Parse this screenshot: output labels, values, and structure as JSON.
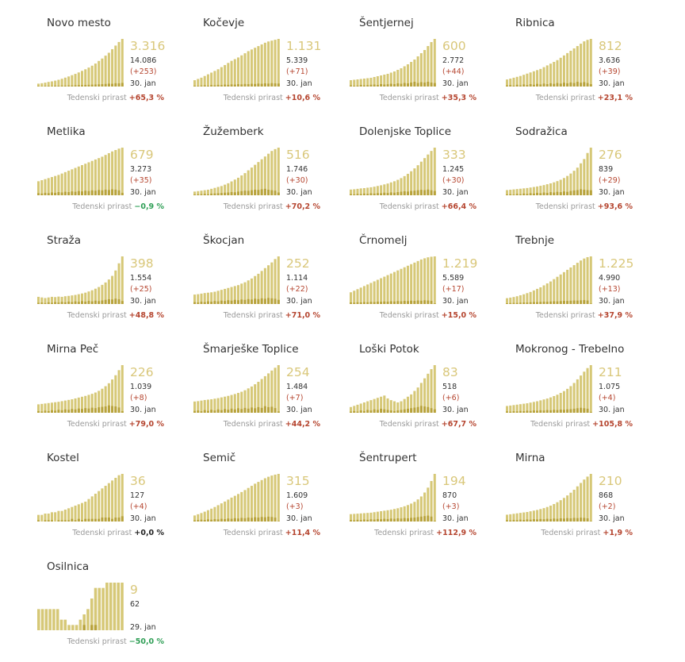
{
  "growth_label": "Tedenski prirast",
  "colors": {
    "bar_light": "#d6c877",
    "bar_dark": "#b8a33c",
    "big_number": "#d9c77a",
    "positive": "#b5452f",
    "negative": "#2e9e55"
  },
  "chart_data": [
    {
      "type": "bar",
      "name": "Novo mesto",
      "active": "3.316",
      "total": "14.086",
      "delta": "(+253)",
      "date": "30. jan",
      "growth": "+65,3 %",
      "sign": "pos",
      "values": [
        200,
        230,
        270,
        320,
        360,
        410,
        470,
        540,
        620,
        700,
        790,
        880,
        980,
        1090,
        1200,
        1320,
        1450,
        1600,
        1780,
        1950,
        2150,
        2350,
        2600,
        2850,
        3100,
        3316
      ],
      "new_cases": [
        40,
        30,
        45,
        50,
        35,
        60,
        55,
        70,
        65,
        80,
        75,
        90,
        100,
        95,
        110,
        120,
        130,
        140,
        150,
        160,
        180,
        200,
        190,
        230,
        220,
        253
      ]
    },
    {
      "type": "bar",
      "name": "Kočevje",
      "active": "1.131",
      "total": "5.339",
      "delta": "(+71)",
      "date": "30. jan",
      "growth": "+10,6 %",
      "sign": "pos",
      "values": [
        150,
        180,
        210,
        250,
        290,
        330,
        370,
        410,
        460,
        510,
        560,
        610,
        650,
        690,
        740,
        790,
        840,
        880,
        920,
        960,
        1000,
        1040,
        1070,
        1090,
        1110,
        1131
      ],
      "new_cases": [
        20,
        15,
        25,
        30,
        20,
        35,
        30,
        40,
        35,
        45,
        40,
        50,
        45,
        55,
        50,
        60,
        55,
        65,
        60,
        70,
        65,
        75,
        70,
        80,
        75,
        71
      ]
    },
    {
      "type": "bar",
      "name": "Šentjernej",
      "active": "600",
      "total": "2.772",
      "delta": "(+44)",
      "date": "30. jan",
      "growth": "+35,3 %",
      "sign": "pos",
      "values": [
        80,
        85,
        90,
        95,
        100,
        105,
        110,
        120,
        130,
        140,
        150,
        160,
        175,
        190,
        210,
        230,
        255,
        280,
        310,
        340,
        380,
        420,
        460,
        510,
        560,
        600
      ],
      "new_cases": [
        15,
        10,
        12,
        20,
        15,
        18,
        22,
        25,
        20,
        30,
        25,
        28,
        35,
        30,
        40,
        35,
        45,
        40,
        50,
        60,
        45,
        55,
        50,
        60,
        50,
        44
      ]
    },
    {
      "type": "bar",
      "name": "Ribnica",
      "active": "812",
      "total": "3.636",
      "delta": "(+39)",
      "date": "30. jan",
      "growth": "+23,1 %",
      "sign": "pos",
      "values": [
        120,
        135,
        150,
        165,
        180,
        200,
        220,
        240,
        260,
        280,
        300,
        330,
        360,
        390,
        420,
        450,
        490,
        530,
        570,
        610,
        650,
        690,
        730,
        770,
        795,
        812
      ],
      "new_cases": [
        20,
        25,
        15,
        30,
        20,
        35,
        25,
        40,
        30,
        45,
        35,
        50,
        40,
        55,
        45,
        60,
        50,
        65,
        55,
        70,
        60,
        80,
        65,
        75,
        60,
        39
      ]
    },
    {
      "type": "bar",
      "name": "Metlika",
      "active": "679",
      "total": "3.273",
      "delta": "(+35)",
      "date": "30. jan",
      "growth": "−0,9 %",
      "sign": "neg",
      "values": [
        200,
        215,
        230,
        245,
        260,
        275,
        290,
        310,
        330,
        350,
        370,
        390,
        410,
        430,
        450,
        470,
        490,
        510,
        530,
        550,
        575,
        600,
        625,
        645,
        665,
        679
      ],
      "new_cases": [
        30,
        25,
        35,
        30,
        40,
        35,
        45,
        40,
        50,
        45,
        55,
        50,
        60,
        55,
        65,
        60,
        70,
        65,
        75,
        70,
        80,
        75,
        85,
        80,
        70,
        35
      ]
    },
    {
      "type": "bar",
      "name": "Žužemberk",
      "active": "516",
      "total": "1.746",
      "delta": "(+30)",
      "date": "30. jan",
      "growth": "+70,2 %",
      "sign": "pos",
      "values": [
        40,
        45,
        50,
        55,
        60,
        70,
        80,
        90,
        100,
        115,
        130,
        150,
        170,
        190,
        215,
        240,
        270,
        300,
        330,
        360,
        390,
        420,
        450,
        480,
        500,
        516
      ],
      "new_cases": [
        8,
        10,
        12,
        15,
        10,
        18,
        20,
        22,
        25,
        28,
        30,
        35,
        32,
        40,
        45,
        50,
        48,
        55,
        60,
        58,
        65,
        70,
        60,
        55,
        50,
        30
      ]
    },
    {
      "type": "bar",
      "name": "Dolenjske Toplice",
      "active": "333",
      "total": "1.245",
      "delta": "(+30)",
      "date": "30. jan",
      "growth": "+66,4 %",
      "sign": "pos",
      "values": [
        40,
        42,
        45,
        48,
        50,
        53,
        56,
        60,
        65,
        70,
        76,
        82,
        90,
        98,
        108,
        120,
        134,
        150,
        168,
        188,
        210,
        235,
        260,
        285,
        310,
        333
      ],
      "new_cases": [
        8,
        6,
        10,
        8,
        12,
        10,
        14,
        12,
        15,
        14,
        18,
        16,
        20,
        18,
        22,
        25,
        28,
        26,
        30,
        32,
        35,
        38,
        36,
        40,
        35,
        30
      ]
    },
    {
      "type": "bar",
      "name": "Sodražica",
      "active": "276",
      "total": "839",
      "delta": "(+29)",
      "date": "30. jan",
      "growth": "+93,6 %",
      "sign": "pos",
      "values": [
        30,
        32,
        34,
        36,
        38,
        40,
        42,
        45,
        48,
        51,
        55,
        59,
        64,
        69,
        75,
        82,
        90,
        100,
        112,
        126,
        142,
        160,
        185,
        210,
        245,
        276
      ],
      "new_cases": [
        5,
        6,
        4,
        8,
        6,
        10,
        8,
        12,
        10,
        14,
        12,
        16,
        14,
        18,
        16,
        20,
        18,
        22,
        20,
        25,
        28,
        30,
        35,
        32,
        30,
        29
      ]
    },
    {
      "type": "bar",
      "name": "Straža",
      "active": "398",
      "total": "1.554",
      "delta": "(+25)",
      "date": "30. jan",
      "growth": "+48,8 %",
      "sign": "pos",
      "values": [
        60,
        55,
        50,
        55,
        60,
        58,
        62,
        60,
        65,
        68,
        72,
        76,
        82,
        88,
        95,
        105,
        115,
        128,
        142,
        160,
        180,
        205,
        235,
        280,
        340,
        398
      ],
      "new_cases": [
        10,
        12,
        8,
        14,
        10,
        16,
        12,
        18,
        14,
        20,
        16,
        22,
        18,
        24,
        20,
        26,
        22,
        28,
        24,
        30,
        35,
        40,
        38,
        45,
        40,
        25
      ]
    },
    {
      "type": "bar",
      "name": "Škocjan",
      "active": "252",
      "total": "1.114",
      "delta": "(+22)",
      "date": "30. jan",
      "growth": "+71,0 %",
      "sign": "pos",
      "values": [
        50,
        52,
        55,
        58,
        60,
        62,
        65,
        70,
        75,
        80,
        85,
        90,
        95,
        100,
        108,
        115,
        125,
        135,
        148,
        160,
        175,
        190,
        205,
        220,
        238,
        252
      ],
      "new_cases": [
        10,
        8,
        12,
        10,
        14,
        12,
        16,
        14,
        18,
        16,
        20,
        18,
        22,
        20,
        24,
        22,
        26,
        24,
        28,
        26,
        30,
        28,
        32,
        30,
        28,
        22
      ]
    },
    {
      "type": "bar",
      "name": "Črnomelj",
      "active": "1.219",
      "total": "5.589",
      "delta": "(+17)",
      "date": "30. jan",
      "growth": "+15,0 %",
      "sign": "pos",
      "values": [
        300,
        340,
        380,
        420,
        460,
        500,
        540,
        580,
        620,
        660,
        700,
        740,
        780,
        820,
        860,
        900,
        940,
        980,
        1020,
        1060,
        1100,
        1140,
        1170,
        1195,
        1210,
        1219
      ],
      "new_cases": [
        40,
        35,
        45,
        40,
        50,
        45,
        55,
        50,
        60,
        55,
        65,
        60,
        70,
        65,
        75,
        70,
        80,
        75,
        85,
        80,
        90,
        85,
        95,
        90,
        80,
        17
      ]
    },
    {
      "type": "bar",
      "name": "Trebnje",
      "active": "1.225",
      "total": "4.990",
      "delta": "(+13)",
      "date": "30. jan",
      "growth": "+37,9 %",
      "sign": "pos",
      "values": [
        150,
        165,
        180,
        200,
        225,
        250,
        280,
        310,
        350,
        390,
        430,
        480,
        530,
        580,
        640,
        700,
        760,
        820,
        880,
        940,
        1000,
        1060,
        1120,
        1170,
        1205,
        1225
      ],
      "new_cases": [
        20,
        25,
        30,
        28,
        35,
        40,
        38,
        45,
        50,
        48,
        55,
        60,
        58,
        65,
        70,
        68,
        75,
        80,
        78,
        85,
        90,
        88,
        95,
        100,
        90,
        13
      ]
    },
    {
      "type": "bar",
      "name": "Mirna Peč",
      "active": "226",
      "total": "1.039",
      "delta": "(+8)",
      "date": "30. jan",
      "growth": "+79,0 %",
      "sign": "pos",
      "values": [
        40,
        42,
        44,
        46,
        48,
        50,
        52,
        55,
        58,
        61,
        64,
        68,
        72,
        76,
        80,
        85,
        90,
        96,
        104,
        114,
        126,
        140,
        158,
        178,
        202,
        226
      ],
      "new_cases": [
        8,
        6,
        10,
        8,
        12,
        10,
        14,
        12,
        16,
        14,
        18,
        16,
        20,
        18,
        22,
        20,
        24,
        22,
        26,
        28,
        30,
        35,
        32,
        30,
        25,
        8
      ]
    },
    {
      "type": "bar",
      "name": "Šmarješke Toplice",
      "active": "254",
      "total": "1.484",
      "delta": "(+7)",
      "date": "30. jan",
      "growth": "+44,2 %",
      "sign": "pos",
      "values": [
        60,
        62,
        65,
        68,
        70,
        72,
        75,
        78,
        82,
        86,
        90,
        95,
        100,
        106,
        112,
        120,
        130,
        140,
        152,
        165,
        180,
        195,
        210,
        225,
        240,
        254
      ],
      "new_cases": [
        10,
        12,
        8,
        14,
        10,
        16,
        12,
        18,
        14,
        20,
        16,
        22,
        18,
        24,
        20,
        26,
        22,
        28,
        24,
        30,
        26,
        35,
        30,
        32,
        25,
        7
      ]
    },
    {
      "type": "bar",
      "name": "Loški Potok",
      "active": "83",
      "total": "518",
      "delta": "(+6)",
      "date": "30. jan",
      "growth": "+67,7 %",
      "sign": "pos",
      "values": [
        10,
        12,
        14,
        16,
        18,
        20,
        22,
        24,
        26,
        28,
        30,
        25,
        22,
        20,
        18,
        20,
        24,
        28,
        32,
        38,
        44,
        52,
        60,
        68,
        76,
        83
      ],
      "new_cases": [
        2,
        3,
        2,
        4,
        3,
        5,
        4,
        6,
        5,
        7,
        6,
        5,
        4,
        3,
        4,
        5,
        6,
        7,
        8,
        9,
        10,
        12,
        11,
        10,
        8,
        6
      ]
    },
    {
      "type": "bar",
      "name": "Mokronog - Trebelno",
      "active": "211",
      "total": "1.075",
      "delta": "(+4)",
      "date": "30. jan",
      "growth": "+105,8 %",
      "sign": "pos",
      "values": [
        30,
        32,
        34,
        36,
        38,
        40,
        42,
        45,
        48,
        51,
        55,
        59,
        63,
        68,
        74,
        80,
        88,
        96,
        106,
        118,
        132,
        148,
        165,
        182,
        198,
        211
      ],
      "new_cases": [
        6,
        5,
        7,
        6,
        8,
        7,
        9,
        8,
        10,
        9,
        11,
        10,
        12,
        11,
        13,
        12,
        14,
        13,
        15,
        16,
        18,
        20,
        22,
        20,
        18,
        4
      ]
    },
    {
      "type": "bar",
      "name": "Kostel",
      "active": "36",
      "total": "127",
      "delta": "(+4)",
      "date": "30. jan",
      "growth": "+0,0 %",
      "sign": "zero",
      "values": [
        5,
        5,
        6,
        6,
        7,
        7,
        8,
        8,
        9,
        10,
        11,
        12,
        13,
        14,
        15,
        17,
        19,
        21,
        23,
        25,
        27,
        29,
        31,
        33,
        35,
        36
      ],
      "new_cases": [
        1,
        0,
        1,
        1,
        1,
        0,
        1,
        1,
        1,
        1,
        2,
        1,
        2,
        1,
        2,
        2,
        2,
        2,
        2,
        3,
        3,
        3,
        2,
        3,
        3,
        4
      ]
    },
    {
      "type": "bar",
      "name": "Semič",
      "active": "315",
      "total": "1.609",
      "delta": "(+3)",
      "date": "30. jan",
      "growth": "+11,4 %",
      "sign": "pos",
      "values": [
        40,
        48,
        56,
        65,
        75,
        85,
        96,
        108,
        120,
        132,
        145,
        158,
        170,
        182,
        195,
        208,
        222,
        236,
        250,
        262,
        274,
        286,
        296,
        304,
        310,
        315
      ],
      "new_cases": [
        8,
        10,
        12,
        10,
        14,
        12,
        16,
        14,
        18,
        16,
        20,
        18,
        22,
        20,
        24,
        22,
        26,
        24,
        28,
        26,
        30,
        28,
        32,
        30,
        26,
        3
      ]
    },
    {
      "type": "bar",
      "name": "Šentrupert",
      "active": "194",
      "total": "870",
      "delta": "(+3)",
      "date": "30. jan",
      "growth": "+112,9 %",
      "sign": "pos",
      "values": [
        30,
        31,
        32,
        33,
        34,
        35,
        36,
        38,
        40,
        42,
        44,
        46,
        48,
        51,
        54,
        58,
        62,
        67,
        73,
        80,
        90,
        102,
        118,
        138,
        165,
        194
      ],
      "new_cases": [
        6,
        5,
        7,
        6,
        8,
        7,
        9,
        8,
        10,
        9,
        11,
        10,
        12,
        11,
        13,
        12,
        14,
        13,
        15,
        16,
        18,
        20,
        22,
        24,
        20,
        3
      ]
    },
    {
      "type": "bar",
      "name": "Mirna",
      "active": "210",
      "total": "868",
      "delta": "(+2)",
      "date": "30. jan",
      "growth": "+1,9 %",
      "sign": "pos",
      "values": [
        30,
        32,
        34,
        36,
        38,
        40,
        42,
        45,
        48,
        51,
        55,
        59,
        64,
        70,
        77,
        85,
        94,
        104,
        115,
        127,
        140,
        155,
        170,
        185,
        198,
        210
      ],
      "new_cases": [
        6,
        5,
        7,
        6,
        8,
        7,
        9,
        8,
        10,
        9,
        11,
        10,
        12,
        11,
        13,
        12,
        14,
        13,
        15,
        14,
        16,
        15,
        17,
        16,
        14,
        2
      ]
    },
    {
      "type": "bar",
      "name": "Osilnica",
      "active": "9",
      "total": "62",
      "delta": "",
      "date": "29. jan",
      "growth": "−50,0 %",
      "sign": "neg",
      "values": [
        4,
        4,
        4,
        4,
        4,
        4,
        2,
        2,
        1,
        1,
        1,
        2,
        3,
        4,
        6,
        8,
        8,
        8,
        9,
        9,
        9,
        9,
        9
      ],
      "new_cases": [
        0,
        0,
        0,
        0,
        0,
        0,
        0,
        0,
        0,
        0,
        0,
        0,
        1,
        0,
        1,
        1,
        0,
        0,
        0,
        0,
        0,
        0,
        0
      ]
    }
  ]
}
